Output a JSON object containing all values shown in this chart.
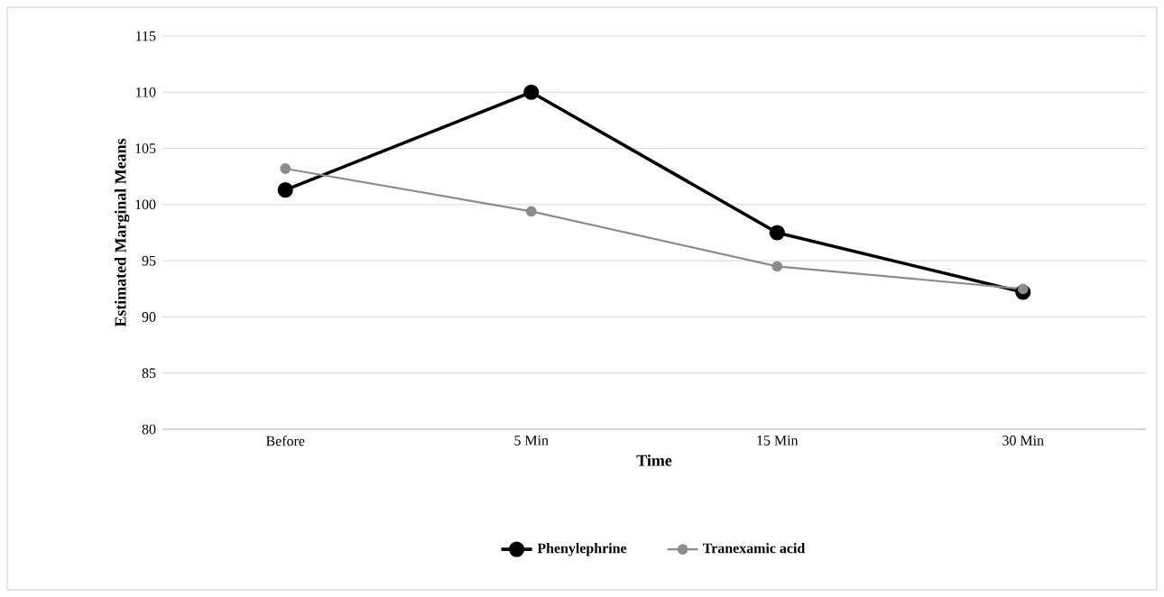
{
  "chart_data": {
    "type": "line",
    "xlabel": "Time",
    "ylabel": "Estimated Marginal Means",
    "categories": [
      "Before",
      "5 Min",
      "15 Min",
      "30 Min"
    ],
    "series": [
      {
        "name": "Phenylephrine",
        "color": "#000000",
        "values": [
          101.3,
          110,
          97.5,
          92.2
        ]
      },
      {
        "name": "Tranexamic acid",
        "color": "#8c8c8c",
        "values": [
          103.2,
          99.4,
          94.5,
          92.5
        ]
      }
    ],
    "ylim": [
      80,
      115
    ],
    "yticks": [
      80,
      85,
      90,
      95,
      100,
      105,
      110,
      115
    ],
    "grid": "y",
    "legend": "bottom",
    "marker": "circle",
    "line_style": "solid"
  }
}
